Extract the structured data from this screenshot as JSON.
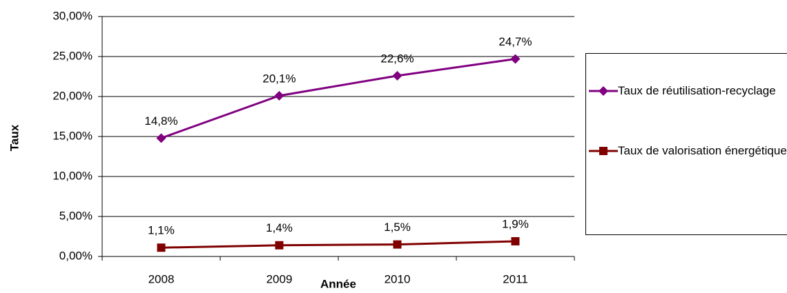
{
  "chart_data": {
    "type": "line",
    "categories": [
      "2008",
      "2009",
      "2010",
      "2011"
    ],
    "series": [
      {
        "name": "Taux de réutilisation-recyclage",
        "color": "#800080",
        "marker": "diamond",
        "values": [
          14.8,
          20.1,
          22.6,
          24.7
        ],
        "value_labels": [
          "14,8%",
          "20,1%",
          "22,6%",
          "24,7%"
        ]
      },
      {
        "name": "Taux de valorisation énergétique",
        "color": "#800000",
        "marker": "square",
        "values": [
          1.1,
          1.4,
          1.5,
          1.9
        ],
        "value_labels": [
          "1,1%",
          "1,4%",
          "1,5%",
          "1,9%"
        ]
      }
    ],
    "xlabel": "Année",
    "ylabel": "Taux",
    "ylim": [
      0,
      30
    ],
    "yticks": [
      {
        "value": 0,
        "label": "0,00%"
      },
      {
        "value": 5,
        "label": "5,00%"
      },
      {
        "value": 10,
        "label": "10,00%"
      },
      {
        "value": 15,
        "label": "15,00%"
      },
      {
        "value": 20,
        "label": "20,00%"
      },
      {
        "value": 25,
        "label": "25,00%"
      },
      {
        "value": 30,
        "label": "30,00%"
      }
    ],
    "grid": true,
    "legend": "right"
  }
}
